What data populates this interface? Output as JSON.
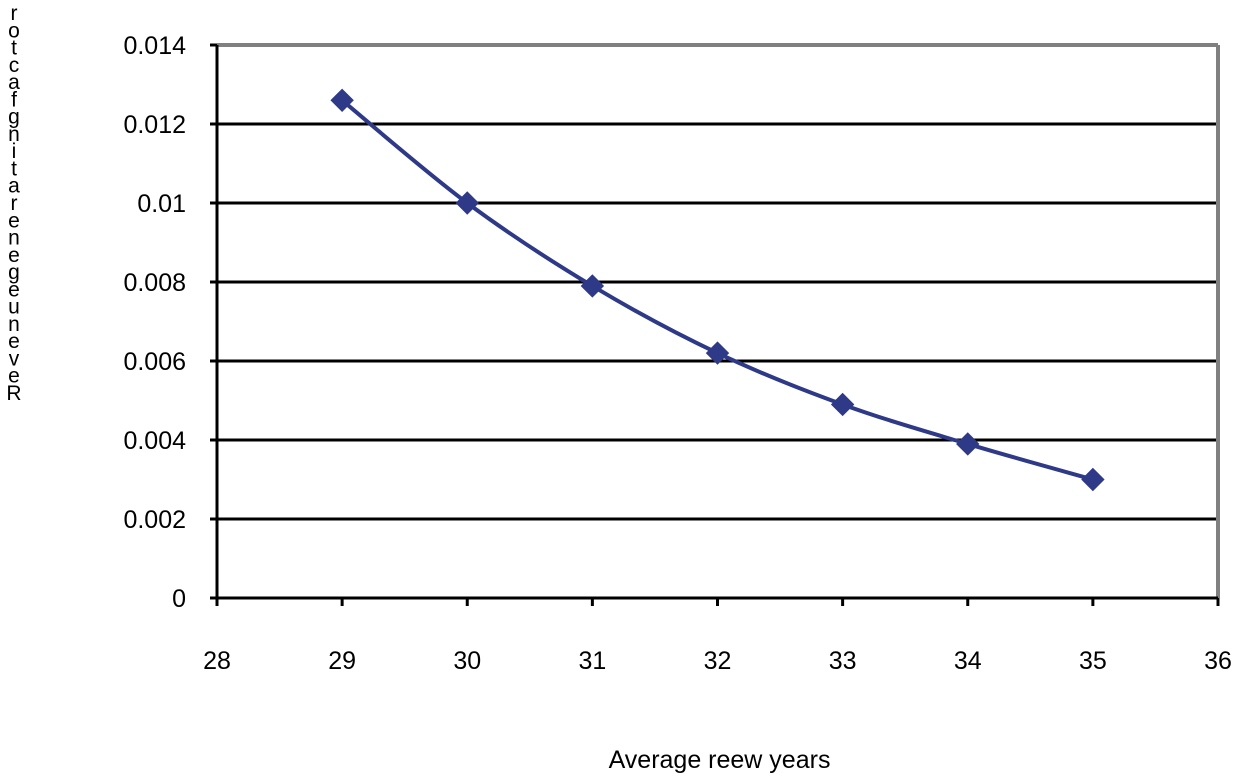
{
  "chart_data": {
    "type": "line",
    "title": "",
    "xlabel": "Average reew years",
    "ylabel": "Revenue generating factor",
    "xlim": [
      28,
      36
    ],
    "ylim": [
      0,
      0.014
    ],
    "x_ticks": [
      "28",
      "29",
      "30",
      "31",
      "32",
      "33",
      "34",
      "35",
      "36"
    ],
    "y_ticks": [
      "0",
      "0.002",
      "0.004",
      "0.006",
      "0.008",
      "0.01",
      "0.012",
      "0.014"
    ],
    "grid": true,
    "legend": "none",
    "series": [
      {
        "x": [
          29,
          30,
          31,
          32,
          33,
          34,
          35
        ],
        "y": [
          0.0126,
          0.01,
          0.0079,
          0.0062,
          0.0049,
          0.0039,
          0.003
        ]
      }
    ],
    "colors": {
      "series": "#2e3a87",
      "grid": "#000000",
      "frame": "#808080"
    }
  }
}
